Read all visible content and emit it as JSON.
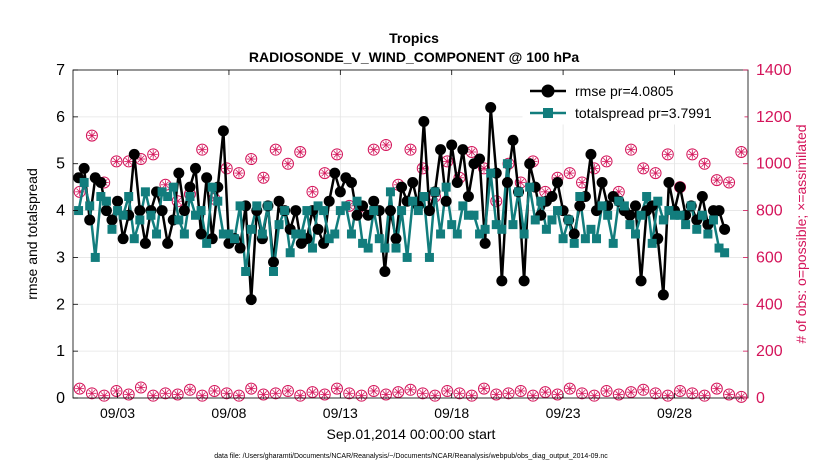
{
  "chart_data": {
    "type": "line",
    "title_line1": "Tropics",
    "title_line2": "RADIOSONDE_V_WIND_COMPONENT @ 100 hPa",
    "xlabel": "Sep.01,2014 00:00:00 start",
    "ylabel_left": "rmse and totalspread",
    "ylabel_right": "# of obs: o=possible; ×=assimilated",
    "footer": "data file: /Users/gharamti/Documents/NCAR/Reanalysis/~/Documents/NCAR/Reanalysis/webpub/obs_diag_output_2014-09.nc",
    "xlim": [
      1,
      31.3
    ],
    "ylim_left": [
      0,
      7
    ],
    "ylim_right": [
      0,
      1400
    ],
    "xticks": [
      3,
      8,
      13,
      18,
      23,
      28
    ],
    "xtick_labels": [
      "09/03",
      "09/08",
      "09/13",
      "09/18",
      "09/23",
      "09/28"
    ],
    "yticks_left": [
      "0",
      "1",
      "2",
      "3",
      "4",
      "5",
      "6",
      "7"
    ],
    "yticks_right": [
      "0",
      "200",
      "400",
      "600",
      "800",
      "1000",
      "1200",
      "1400"
    ],
    "colors": {
      "rmse": "#000000",
      "spread": "#127d7d",
      "obs": "#d4145a"
    },
    "series": [
      {
        "name": "rmse pr=4.0805",
        "values": [
          4.7,
          4.9,
          3.8,
          4.7,
          4.6,
          4.0,
          3.8,
          4.2,
          3.4,
          3.9,
          5.2,
          4.0,
          3.3,
          4.0,
          4.4,
          4.0,
          3.3,
          3.8,
          4.8,
          4.0,
          4.5,
          4.9,
          3.5,
          4.7,
          3.4,
          4.5,
          5.7,
          3.3,
          3.4,
          3.2,
          4.1,
          2.1,
          4.0,
          3.4,
          4.1,
          2.9,
          4.2,
          4.0,
          3.6,
          4.0,
          3.3,
          3.4,
          4.0,
          3.6,
          3.3,
          4.2,
          4.8,
          4.4,
          4.7,
          4.6,
          3.9,
          4.1,
          3.9,
          4.2,
          4.0,
          2.7,
          4.0,
          3.4,
          4.5,
          4.2,
          4.6,
          4.1,
          5.9,
          4.0,
          4.4,
          5.3,
          4.2,
          5.4,
          4.6,
          5.3,
          4.3,
          5.0,
          5.1,
          3.3,
          6.2,
          4.8,
          2.5,
          4.6,
          5.5,
          4.4,
          2.5,
          5.0,
          4.5,
          3.9,
          4.2,
          4.3,
          4.6,
          4.0,
          3.8,
          3.5,
          4.1,
          4.3,
          5.2,
          4.0,
          4.6,
          4.1,
          4.3,
          4.2,
          4.0,
          3.9,
          4.1,
          2.5,
          4.0,
          4.1,
          3.4,
          2.2,
          4.6,
          4.0,
          4.5,
          3.9,
          4.1,
          3.8,
          4.3,
          3.7,
          4.0,
          4.0,
          3.6
        ],
        "x_start": 1.25,
        "x_step": 0.25
      },
      {
        "name": "totalspread pr=3.7991",
        "values": [
          4.0,
          4.6,
          4.1,
          3.0,
          4.3,
          4.2,
          3.6,
          4.0,
          3.9,
          4.3,
          3.4,
          3.8,
          4.4,
          3.9,
          3.5,
          4.4,
          4.3,
          4.5,
          3.8,
          3.5,
          4.3,
          3.9,
          4.0,
          3.3,
          4.5,
          4.2,
          3.5,
          3.5,
          3.4,
          4.1,
          2.7,
          3.6,
          4.1,
          3.5,
          4.1,
          2.7,
          3.7,
          4.0,
          3.1,
          3.5,
          3.5,
          4.0,
          3.2,
          4.1,
          4.0,
          3.4,
          3.5,
          4.0,
          4.1,
          3.5,
          4.2,
          3.3,
          3.2,
          4.0,
          3.4,
          3.2,
          4.4,
          3.2,
          4.0,
          3.0,
          4.2,
          4.0,
          4.3,
          3.0,
          4.4,
          3.5,
          4.5,
          3.7,
          3.5,
          4.1,
          3.9,
          3.9,
          3.5,
          3.6,
          4.8,
          3.7,
          3.6,
          5.0,
          3.7,
          4.4,
          3.5,
          4.5,
          3.8,
          4.2,
          3.6,
          3.8,
          4.0,
          3.4,
          3.8,
          3.3,
          4.3,
          3.4,
          3.6,
          3.4,
          4.1,
          3.9,
          3.3,
          4.2,
          4.1,
          3.7,
          3.5,
          3.9,
          4.3,
          3.3,
          4.2,
          3.8,
          4.0,
          3.9,
          3.9,
          3.7,
          4.1,
          3.6,
          3.9,
          3.5,
          3.8,
          3.2,
          3.1
        ],
        "x_start": 1.25,
        "x_step": 0.25
      },
      {
        "name": "obs possible (upper)",
        "values": [
          880,
          1120,
          920,
          1010,
          1010,
          1020,
          1040,
          910,
          840,
          870,
          1060,
          850,
          980,
          960,
          1020,
          940,
          1060,
          1000,
          1050,
          880,
          960,
          1040,
          820,
          800,
          1060,
          1080,
          910,
          1060,
          980,
          860,
          1010,
          940,
          1050,
          980,
          840,
          1000,
          920,
          1010,
          880,
          940,
          960,
          920,
          980,
          1010,
          880,
          1060,
          980,
          960,
          1040,
          900,
          1040,
          1000,
          930,
          920,
          1050
        ],
        "x_start": 1.3,
        "x_step": 0.55
      },
      {
        "name": "obs possible (lower)",
        "values": [
          40,
          20,
          10,
          30,
          15,
          45,
          10,
          20,
          15,
          35,
          10,
          30,
          20,
          10,
          40,
          15,
          20,
          30,
          10,
          25,
          15,
          40,
          20,
          10,
          30,
          15,
          25,
          35,
          20,
          10,
          30,
          20,
          10,
          40,
          15,
          20,
          30,
          10,
          25,
          15,
          40,
          20,
          10,
          30,
          15,
          25,
          35,
          20,
          10,
          30,
          20,
          10,
          40,
          15,
          5
        ],
        "x_start": 1.3,
        "x_step": 0.55
      }
    ]
  }
}
